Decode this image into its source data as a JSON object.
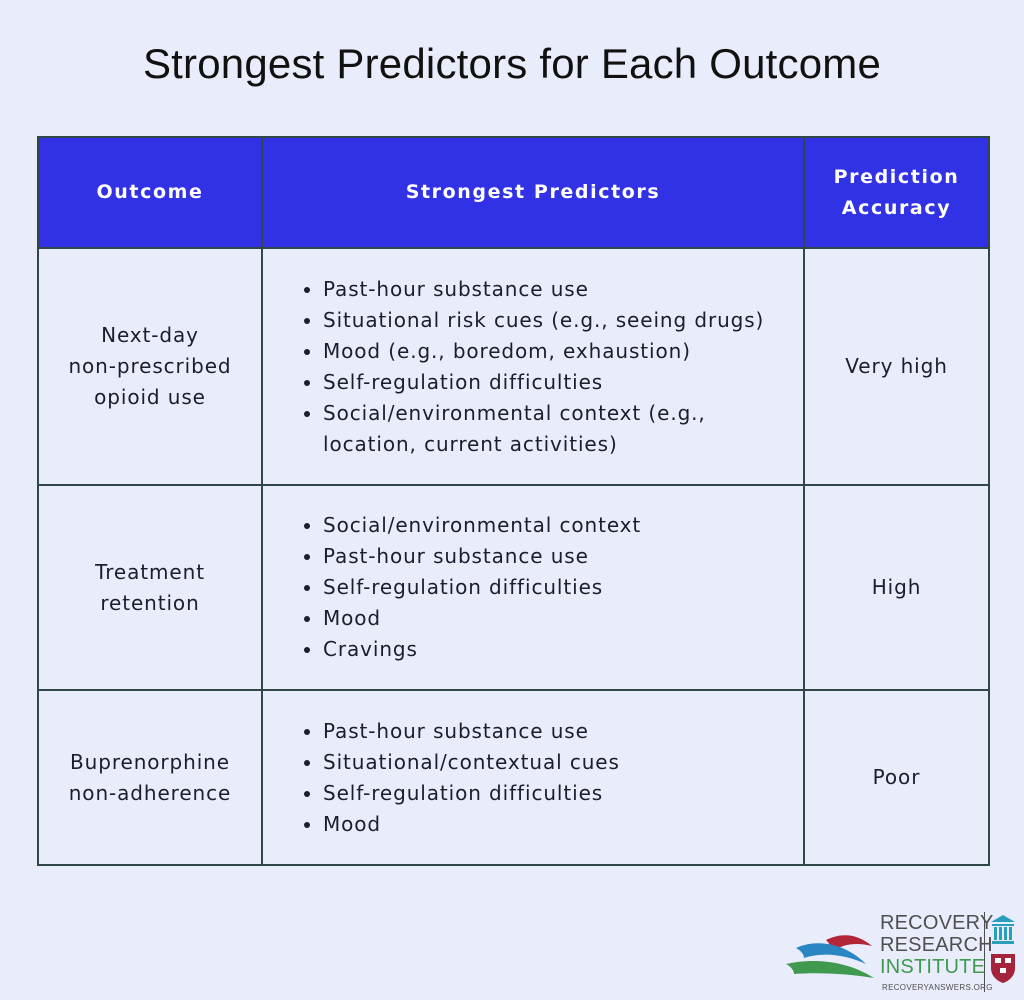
{
  "title": "Strongest Predictors for Each Outcome",
  "table": {
    "headers": {
      "outcome": "Outcome",
      "predictors": "Strongest Predictors",
      "accuracy_line1": "Prediction",
      "accuracy_line2": "Accuracy"
    },
    "rows": [
      {
        "outcome_lines": [
          "Next-day",
          "non-prescribed",
          "opioid use"
        ],
        "predictors": [
          "Past-hour substance use",
          "Situational risk cues (e.g., seeing drugs)",
          "Mood (e.g., boredom, exhaustion)",
          "Self-regulation difficulties",
          "Social/environmental context (e.g., location, current activities)"
        ],
        "accuracy": "Very high"
      },
      {
        "outcome_lines": [
          "Treatment",
          "retention"
        ],
        "predictors": [
          "Social/environmental context",
          "Past-hour substance use",
          "Self-regulation difficulties",
          "Mood",
          "Cravings"
        ],
        "accuracy": "High"
      },
      {
        "outcome_lines": [
          "Buprenorphine",
          "non-adherence"
        ],
        "predictors": [
          "Past-hour substance use",
          "Situational/contextual cues",
          "Self-regulation difficulties",
          "Mood"
        ],
        "accuracy": "Poor"
      }
    ]
  },
  "logo": {
    "line1": "RECOVERY",
    "line2": "RESEARCH",
    "line3": "INSTITUTE",
    "url": "RECOVERYANSWERS.ORG",
    "colors": {
      "blue": "#2a86c2",
      "red": "#b3263a",
      "green": "#3f9a4f",
      "building": "#2a9fbd",
      "shield": "#a3243b"
    }
  }
}
